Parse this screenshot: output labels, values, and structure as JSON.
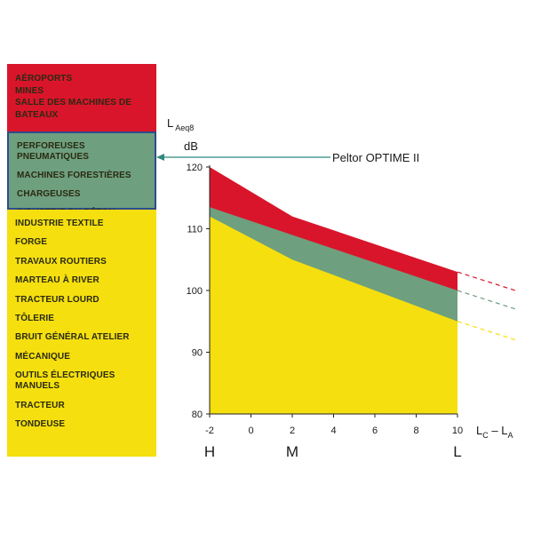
{
  "panels": {
    "red": [
      "AÉROPORTS",
      "MINES",
      "SALLE DES MACHINES DE BATEAUX"
    ],
    "green": [
      "PERFOREUSES PNEUMATIQUES",
      "MACHINES FORESTIÈRES",
      "CHARGEUSES",
      "INDUSTRIE DU BÉTON"
    ],
    "yellow": [
      "INDUSTRIE TEXTILE",
      "FORGE",
      "TRAVAUX ROUTIERS",
      "MARTEAU À RIVER",
      "TRACTEUR LOURD",
      "TÔLERIE",
      "BRUIT GÉNÉRAL ATELIER",
      "MÉCANIQUE",
      "OUTILS ÉLECTRIQUES MANUELS",
      "TRACTEUR",
      "TONDEUSE"
    ]
  },
  "callout": "Peltor OPTIME II",
  "colors": {
    "red": "#d9152b",
    "green": "#6e9f7f",
    "yellow": "#f5df0e",
    "arrow": "#2f8a7e",
    "border": "#2e4d8a"
  },
  "chart_data": {
    "type": "area",
    "ylabel": {
      "main": "L",
      "sub": "Aeq8",
      "unit": "dB"
    },
    "xlabel": {
      "c": "L",
      "cs": "C",
      "dash": " – ",
      "a": "L",
      "as": "A"
    },
    "x_ticks": [
      -2,
      0,
      2,
      4,
      6,
      8,
      10
    ],
    "y_ticks": [
      80,
      90,
      100,
      110,
      120
    ],
    "xlim": [
      -2,
      10
    ],
    "ylim": [
      80,
      120
    ],
    "grid": false,
    "x": [
      -2,
      2,
      10
    ],
    "series": [
      {
        "color": "#f5df0e",
        "values": [
          112,
          105,
          95
        ]
      },
      {
        "color": "#6e9f7f",
        "values": [
          113.5,
          109,
          100
        ]
      },
      {
        "color": "#d9152b",
        "values": [
          120,
          112,
          103
        ]
      }
    ],
    "extensions": [
      {
        "color": "#f5df0e",
        "from": [
          10,
          95
        ],
        "to": [
          12.8,
          92
        ]
      },
      {
        "color": "#6e9f7f",
        "from": [
          10,
          100
        ],
        "to": [
          12.8,
          97
        ]
      },
      {
        "color": "#d9152b",
        "from": [
          10,
          103
        ],
        "to": [
          12.8,
          100
        ]
      }
    ],
    "category_labels": [
      {
        "x": -2,
        "label": "H"
      },
      {
        "x": 2,
        "label": "M"
      },
      {
        "x": 10,
        "label": "L"
      }
    ]
  }
}
